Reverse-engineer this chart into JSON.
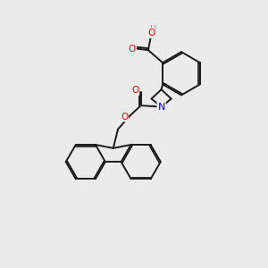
{
  "background_color": "#ebebeb",
  "atom_colors": {
    "C": "#000000",
    "O": "#ff0000",
    "N": "#0000ff",
    "H": "#5aabab"
  },
  "bond_color": "#1a1a1a",
  "bond_width": 1.4,
  "dbo": 0.06,
  "figsize": [
    3.0,
    3.0
  ],
  "dpi": 100
}
